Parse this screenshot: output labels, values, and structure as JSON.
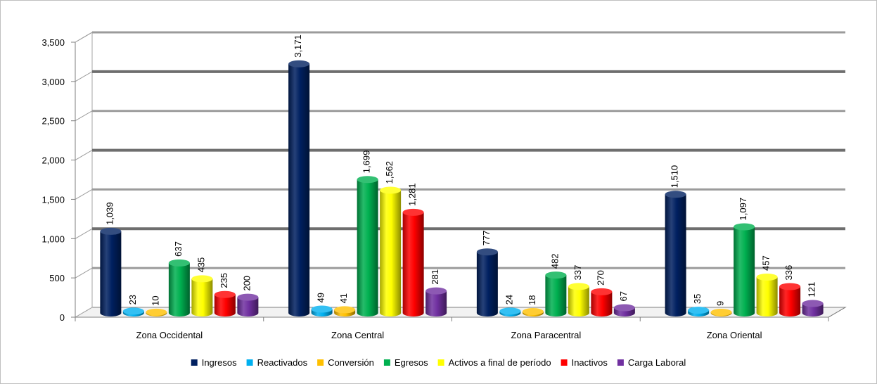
{
  "chart_data": {
    "type": "bar",
    "categories": [
      "Zona Occidental",
      "Zona Central",
      "Zona Paracentral",
      "Zona Oriental"
    ],
    "series": [
      {
        "name": "Ingresos",
        "color": "#002060",
        "values": [
          1039,
          3171,
          777,
          1510
        ]
      },
      {
        "name": "Reactivados",
        "color": "#00b0f0",
        "values": [
          23,
          49,
          24,
          35
        ]
      },
      {
        "name": "Conversión",
        "color": "#ffc000",
        "values": [
          10,
          41,
          18,
          9
        ]
      },
      {
        "name": "Egresos",
        "color": "#00b050",
        "values": [
          637,
          1699,
          482,
          1097
        ]
      },
      {
        "name": "Activos a final de período",
        "color": "#ffff00",
        "values": [
          435,
          1562,
          337,
          457
        ]
      },
      {
        "name": "Inactivos",
        "color": "#ff0000",
        "values": [
          235,
          1281,
          270,
          336
        ]
      },
      {
        "name": "Carga Laboral",
        "color": "#7030a0",
        "values": [
          200,
          281,
          67,
          121
        ]
      }
    ],
    "data_labels": [
      [
        "1,039",
        "3,171",
        "777",
        "1,510"
      ],
      [
        "23",
        "49",
        "24",
        "35"
      ],
      [
        "10",
        "41",
        "18",
        "9"
      ],
      [
        "637",
        "1,699",
        "482",
        "1,097"
      ],
      [
        "435",
        "1,562",
        "337",
        "457"
      ],
      [
        "235",
        "1,281",
        "270",
        "336"
      ],
      [
        "200",
        "281",
        "67",
        "121"
      ]
    ],
    "yticks": [
      "0",
      "500",
      "1,000",
      "1,500",
      "2,000",
      "2,500",
      "3,000",
      "3,500"
    ],
    "ylim": [
      0,
      3500
    ],
    "grid": true,
    "legend_position": "bottom",
    "style": "3d-cylinder"
  }
}
